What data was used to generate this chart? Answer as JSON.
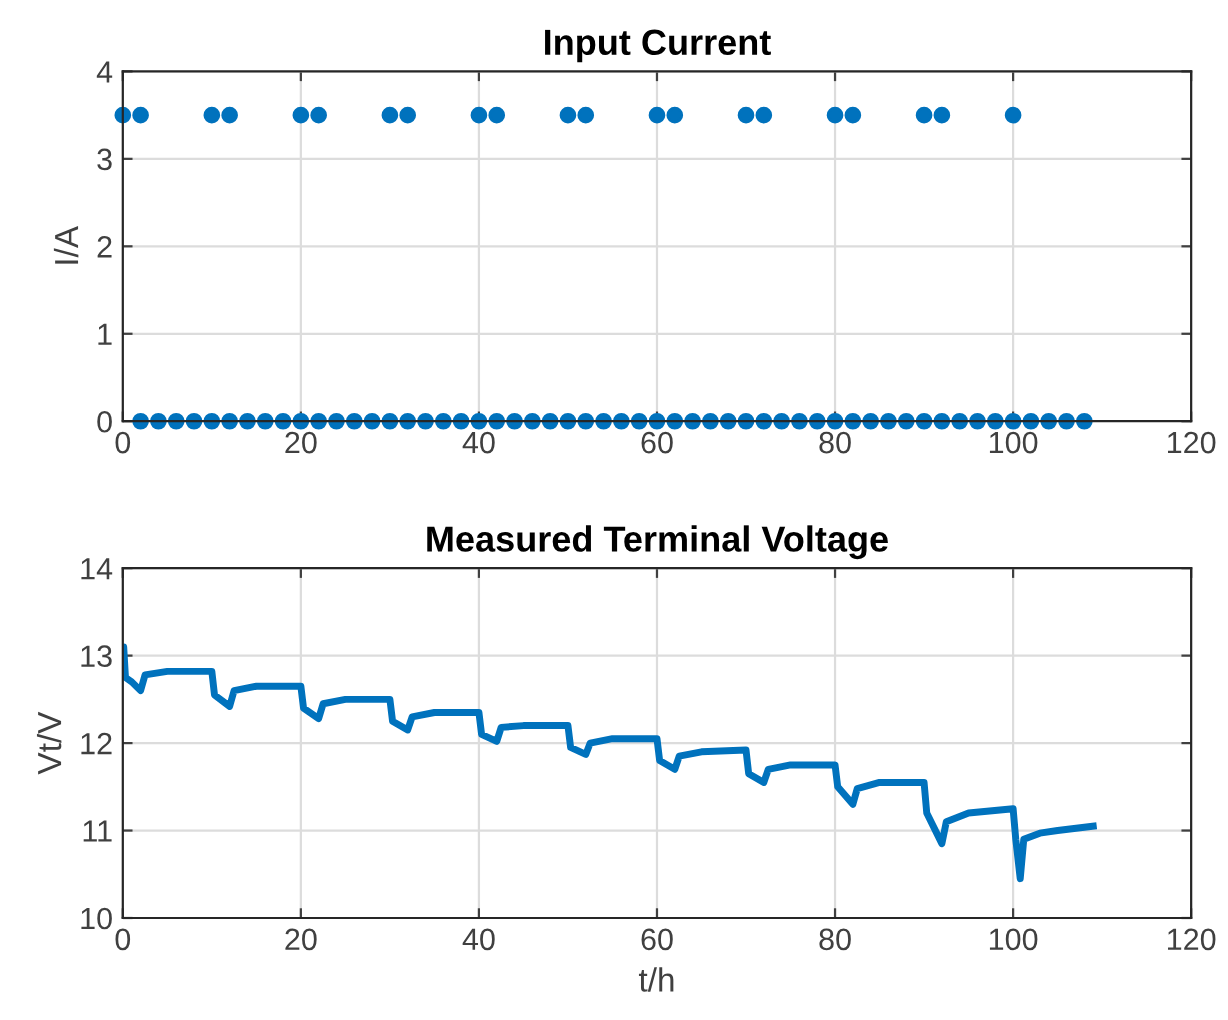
{
  "chart_data": [
    {
      "type": "scatter",
      "title": "Input Current",
      "ylabel": "I/A",
      "xlim": [
        0,
        120
      ],
      "xticks": [
        0,
        20,
        40,
        60,
        80,
        100,
        120
      ],
      "ylim": [
        0,
        4
      ],
      "yticks": [
        0,
        1,
        2,
        3,
        4
      ],
      "grid": true,
      "marker": "circle",
      "series": [
        {
          "color": "#0072bd",
          "x": [
            0,
            2,
            10,
            12,
            20,
            22,
            30,
            32,
            40,
            42,
            50,
            52,
            60,
            62,
            70,
            72,
            80,
            82,
            90,
            92,
            100
          ],
          "values": [
            3.5,
            3.5,
            3.5,
            3.5,
            3.5,
            3.5,
            3.5,
            3.5,
            3.5,
            3.5,
            3.5,
            3.5,
            3.5,
            3.5,
            3.5,
            3.5,
            3.5,
            3.5,
            3.5,
            3.5,
            3.5
          ]
        },
        {
          "color": "#0072bd",
          "x": [
            2,
            4,
            6,
            8,
            10,
            12,
            14,
            16,
            18,
            20,
            22,
            24,
            26,
            28,
            30,
            32,
            34,
            36,
            38,
            40,
            42,
            44,
            46,
            48,
            50,
            52,
            54,
            56,
            58,
            60,
            62,
            64,
            66,
            68,
            70,
            72,
            74,
            76,
            78,
            80,
            82,
            84,
            86,
            88,
            90,
            92,
            94,
            96,
            98,
            100,
            102,
            104,
            106,
            108
          ],
          "values": [
            0,
            0,
            0,
            0,
            0,
            0,
            0,
            0,
            0,
            0,
            0,
            0,
            0,
            0,
            0,
            0,
            0,
            0,
            0,
            0,
            0,
            0,
            0,
            0,
            0,
            0,
            0,
            0,
            0,
            0,
            0,
            0,
            0,
            0,
            0,
            0,
            0,
            0,
            0,
            0,
            0,
            0,
            0,
            0,
            0,
            0,
            0,
            0,
            0,
            0,
            0,
            0,
            0,
            0
          ]
        }
      ]
    },
    {
      "type": "line",
      "title": "Measured Terminal Voltage",
      "xlabel": "t/h",
      "ylabel": "Vt/V",
      "xlim": [
        0,
        120
      ],
      "xticks": [
        0,
        20,
        40,
        60,
        80,
        100,
        120
      ],
      "ylim": [
        10,
        14
      ],
      "yticks": [
        10,
        11,
        12,
        13,
        14
      ],
      "grid": true,
      "line_style": "solid",
      "series": [
        {
          "color": "#0072bd",
          "x": [
            0,
            0.1,
            0.3,
            1,
            2,
            2.5,
            5,
            10,
            10.3,
            12,
            12.5,
            15,
            20,
            20.3,
            22,
            22.5,
            25,
            30,
            30.3,
            32,
            32.5,
            35,
            40,
            40.3,
            42,
            42.5,
            45,
            50,
            50.3,
            52,
            52.5,
            55,
            60,
            60.3,
            62,
            62.5,
            65,
            70,
            70.3,
            72,
            72.5,
            75,
            80,
            80.3,
            82,
            82.5,
            85,
            90,
            90.3,
            92,
            92.5,
            95,
            100,
            100.3,
            100.8,
            101.2,
            103,
            105,
            109
          ],
          "values": [
            12.8,
            13.1,
            12.75,
            12.7,
            12.6,
            12.78,
            12.82,
            12.82,
            12.55,
            12.42,
            12.6,
            12.65,
            12.65,
            12.4,
            12.28,
            12.45,
            12.5,
            12.5,
            12.25,
            12.15,
            12.3,
            12.35,
            12.35,
            12.1,
            12.02,
            12.18,
            12.2,
            12.2,
            11.95,
            11.87,
            12.0,
            12.05,
            12.05,
            11.8,
            11.7,
            11.85,
            11.9,
            11.92,
            11.65,
            11.55,
            11.7,
            11.75,
            11.75,
            11.5,
            11.3,
            11.48,
            11.55,
            11.55,
            11.2,
            10.85,
            11.1,
            11.2,
            11.25,
            10.9,
            10.45,
            10.9,
            10.97,
            11.0,
            11.05
          ]
        }
      ]
    }
  ]
}
